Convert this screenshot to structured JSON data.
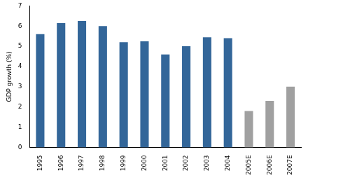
{
  "chart_data": {
    "type": "bar",
    "y_label": "GDP growth (%)",
    "categories": [
      "1995",
      "1996",
      "1997",
      "1998",
      "1999",
      "2000",
      "2001",
      "2002",
      "2003",
      "2004",
      "2005E",
      "2006E",
      "2007E"
    ],
    "values": [
      5.6,
      6.15,
      6.25,
      6.0,
      5.2,
      5.25,
      4.6,
      5.0,
      5.45,
      5.4,
      1.8,
      2.3,
      3.0
    ],
    "colors": [
      "#336699",
      "#336699",
      "#336699",
      "#336699",
      "#336699",
      "#336699",
      "#336699",
      "#336699",
      "#336699",
      "#336699",
      "#a0a0a0",
      "#a0a0a0",
      "#a0a0a0"
    ],
    "ylim": [
      0,
      7
    ],
    "yticks": [
      0,
      1,
      2,
      3,
      4,
      5,
      6,
      7
    ],
    "grid": false
  }
}
